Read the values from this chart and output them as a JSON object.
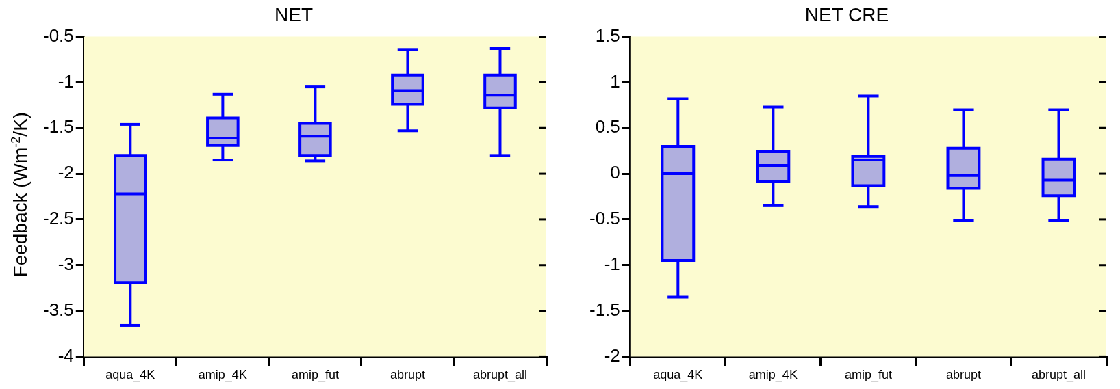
{
  "chart_data": [
    {
      "type": "box",
      "title": "NET",
      "ylabel": "Feedback (Wm$^{-2}$/K)",
      "categories": [
        "aqua_4K",
        "amip_4K",
        "amip_fut",
        "abrupt",
        "abrupt_all"
      ],
      "ylim": [
        -4,
        -0.5
      ],
      "yticks": [
        -4,
        -3.5,
        -3,
        -2.5,
        -2,
        -1.5,
        -1,
        -0.5
      ],
      "series": [
        {
          "color": "#0000ff",
          "boxes": [
            {
              "low": -3.66,
              "q1": -3.19,
              "median": -2.22,
              "q3": -1.8,
              "high": -1.46
            },
            {
              "low": -1.85,
              "q1": -1.69,
              "median": -1.61,
              "q3": -1.39,
              "high": -1.13
            },
            {
              "low": -1.86,
              "q1": -1.8,
              "median": -1.59,
              "q3": -1.45,
              "high": -1.05
            },
            {
              "low": -1.53,
              "q1": -1.24,
              "median": -1.09,
              "q3": -0.92,
              "high": -0.64
            },
            {
              "low": -1.8,
              "q1": -1.28,
              "median": -1.14,
              "q3": -0.92,
              "high": -0.63
            }
          ]
        }
      ]
    },
    {
      "type": "box",
      "title": "NET CRE",
      "categories": [
        "aqua_4K",
        "amip_4K",
        "amip_fut",
        "abrupt",
        "abrupt_all"
      ],
      "ylim": [
        -2,
        1.5
      ],
      "yticks": [
        -2,
        -1.5,
        -1,
        -0.5,
        0,
        0.5,
        1,
        1.5
      ],
      "series": [
        {
          "color": "#0000ff",
          "boxes": [
            {
              "low": -1.35,
              "q1": -0.95,
              "median": 0,
              "q3": 0.3,
              "high": 0.82
            },
            {
              "low": -0.35,
              "q1": -0.09,
              "median": 0.09,
              "q3": 0.24,
              "high": 0.73
            },
            {
              "low": -0.36,
              "q1": -0.13,
              "median": 0.15,
              "q3": 0.19,
              "high": 0.85
            },
            {
              "low": -0.51,
              "q1": -0.16,
              "median": -0.02,
              "q3": 0.28,
              "high": 0.7
            },
            {
              "low": -0.51,
              "q1": -0.24,
              "median": -0.07,
              "q3": 0.16,
              "high": 0.7
            }
          ]
        }
      ]
    }
  ]
}
